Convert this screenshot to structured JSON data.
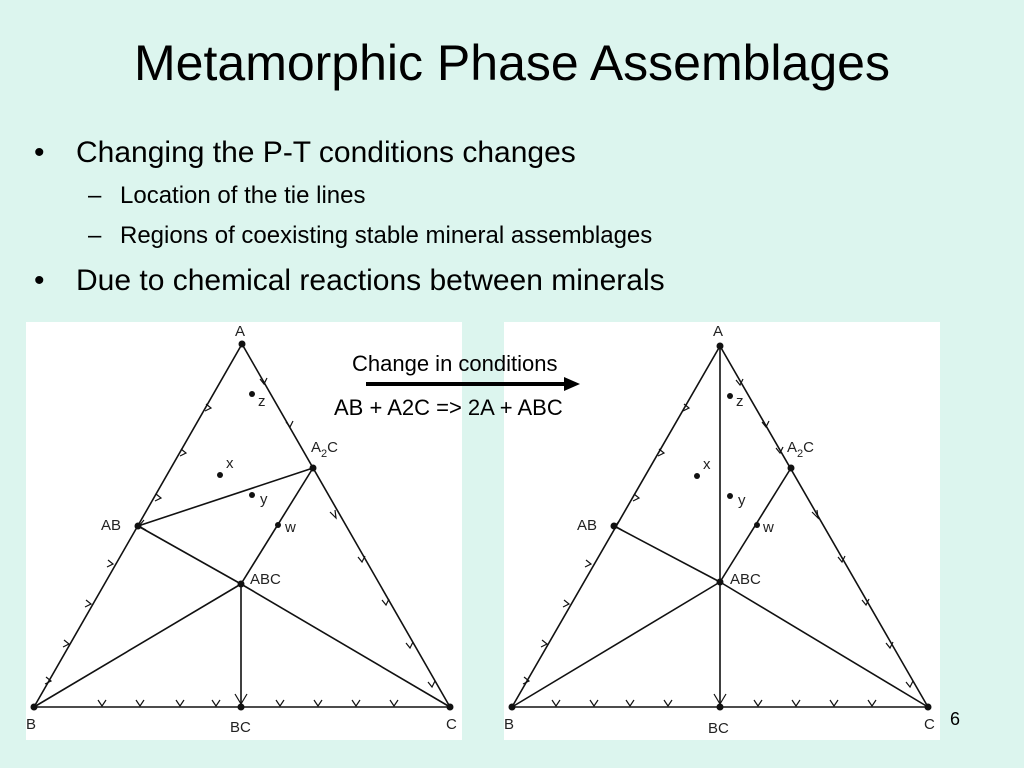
{
  "slide": {
    "title": "Metamorphic Phase Assemblages",
    "page_number": "6"
  },
  "bullets": [
    {
      "text": "Changing the P-T conditions changes",
      "sub": [
        "Location of the tie lines",
        "Regions of coexisting stable mineral assemblages"
      ]
    },
    {
      "text": "Due to chemical reactions between minerals",
      "sub": []
    }
  ],
  "reaction": {
    "label": "Change in conditions",
    "equation": "AB + A2C  => 2A + ABC"
  },
  "diagram": {
    "vertices": {
      "A": "A",
      "B": "B",
      "C": "C"
    },
    "phases": {
      "AB": "AB",
      "A2C_base": "A",
      "A2C_sub": "2",
      "A2C_tail": "C",
      "ABC": "ABC",
      "BC": "BC"
    },
    "points": {
      "x": "x",
      "y": "y",
      "z": "z",
      "w": "w"
    }
  }
}
